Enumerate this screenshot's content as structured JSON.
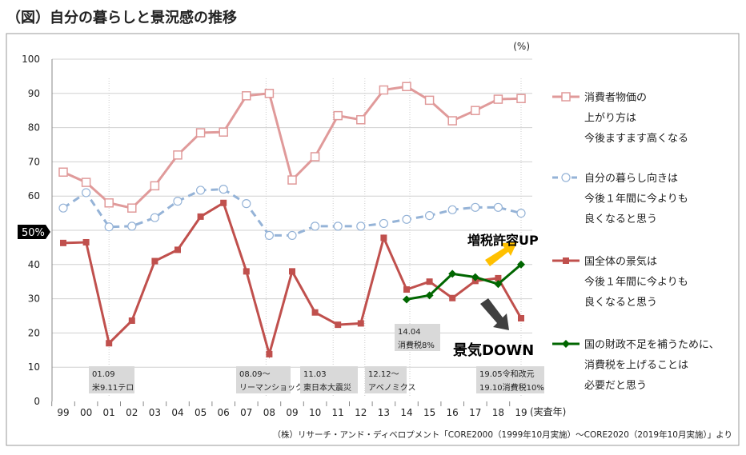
{
  "title": "（図）自分の暮らしと景況感の推移",
  "unit_label": "(%)",
  "x_axis_suffix": "(実査年)",
  "fifty_marker": "50%",
  "source": "（株）リサーチ・アンド・ディベロプメント「CORE2000（1999年10月実施）～CORE2020（2019年10月実施）」より",
  "callouts": {
    "up": "増税許容UP",
    "down": "景気DOWN",
    "up_arrow_color": "#ffc000",
    "down_arrow_color": "#404040"
  },
  "annotations": [
    {
      "year": "01",
      "lines": [
        "01.09",
        "米9.11テロ"
      ]
    },
    {
      "year": "08",
      "lines": [
        "08.09～",
        "リーマンショック"
      ]
    },
    {
      "year": "11",
      "lines": [
        "11.03",
        "東日本大震災"
      ]
    },
    {
      "year": "12",
      "lines": [
        "12.12～",
        "アベノミクス"
      ]
    },
    {
      "year": "14",
      "lines": [
        "14.04",
        "消費税8%"
      ]
    },
    {
      "year": "19",
      "lines": [
        "19.05令和改元",
        "19.10消費税10%"
      ]
    }
  ],
  "chart_data": {
    "type": "line",
    "categories": [
      "99",
      "00",
      "01",
      "02",
      "03",
      "04",
      "05",
      "06",
      "07",
      "08",
      "09",
      "10",
      "11",
      "12",
      "13",
      "14",
      "15",
      "16",
      "17",
      "18",
      "19"
    ],
    "ylim": [
      0,
      100
    ],
    "yticks": [
      0,
      10,
      20,
      30,
      40,
      50,
      60,
      70,
      80,
      90,
      100
    ],
    "grid": true,
    "legend_placement": "right",
    "series": [
      {
        "name": [
          "消費者物価の",
          "上がり方は",
          "今後ますます高くなる"
        ],
        "color": "#e09a9a",
        "marker": "open-square",
        "dash": false,
        "values": [
          67,
          64,
          58,
          56.5,
          63,
          72,
          78.5,
          78.7,
          89.3,
          90,
          64.7,
          71.5,
          83.5,
          82.3,
          91,
          92,
          88,
          82,
          85,
          88.3,
          88.5
        ]
      },
      {
        "name": [
          "自分の暮らし向きは",
          "今後１年間に今よりも",
          "良くなると思う"
        ],
        "color": "#95b3d7",
        "marker": "open-circle",
        "dash": true,
        "values": [
          56.5,
          61,
          51,
          51.2,
          53.7,
          58.5,
          61.7,
          62,
          57.8,
          48.5,
          48.5,
          51.2,
          51.2,
          51.2,
          52,
          53.2,
          54.3,
          56,
          56.7,
          56.7,
          55
        ]
      },
      {
        "name": [
          "国全体の景気は",
          "今後１年間に今よりも",
          "良くなると思う"
        ],
        "color": "#c0504d",
        "marker": "filled-square",
        "dash": false,
        "values": [
          46.3,
          46.5,
          17,
          23.6,
          41,
          44.3,
          54,
          58,
          38,
          13.8,
          38,
          26,
          22.4,
          22.8,
          47.8,
          32.7,
          35,
          30.2,
          35.2,
          36,
          24.3
        ]
      },
      {
        "name": [
          "国の財政不足を補うために、",
          "消費税を上げることは",
          "必要だと思う"
        ],
        "color": "#006600",
        "marker": "diamond",
        "dash": false,
        "values": [
          null,
          null,
          null,
          null,
          null,
          null,
          null,
          null,
          null,
          null,
          null,
          null,
          null,
          null,
          null,
          29.8,
          31,
          37.3,
          36.3,
          34.3,
          40
        ]
      }
    ]
  }
}
